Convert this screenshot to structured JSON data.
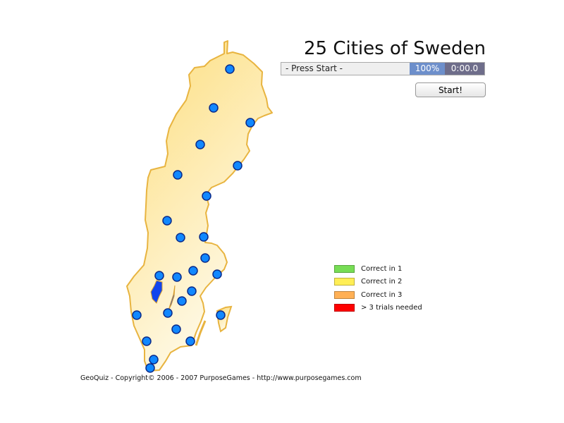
{
  "title": "25 Cities of Sweden",
  "status_text": "- Press Start -",
  "progress_percent": "100%",
  "timer": "0:00.0",
  "start_button": "Start!",
  "legend": [
    {
      "label": "Correct in 1",
      "color": "#77dd55"
    },
    {
      "label": "Correct in 2",
      "color": "#ffee55"
    },
    {
      "label": "Correct in 3",
      "color": "#ffb055"
    },
    {
      "label": "> 3 trials needed",
      "color": "#ff0000"
    }
  ],
  "footer": "GeoQuiz - Copyright© 2006 - 2007 PurposeGames - http://www.purposegames.com",
  "colors": {
    "land_fill": "#fde8a6",
    "land_border": "#e8b440",
    "city_marker": "#1188ff",
    "city_border": "#0a2a8a",
    "lake": "#1144ee"
  },
  "city_count": 25
}
